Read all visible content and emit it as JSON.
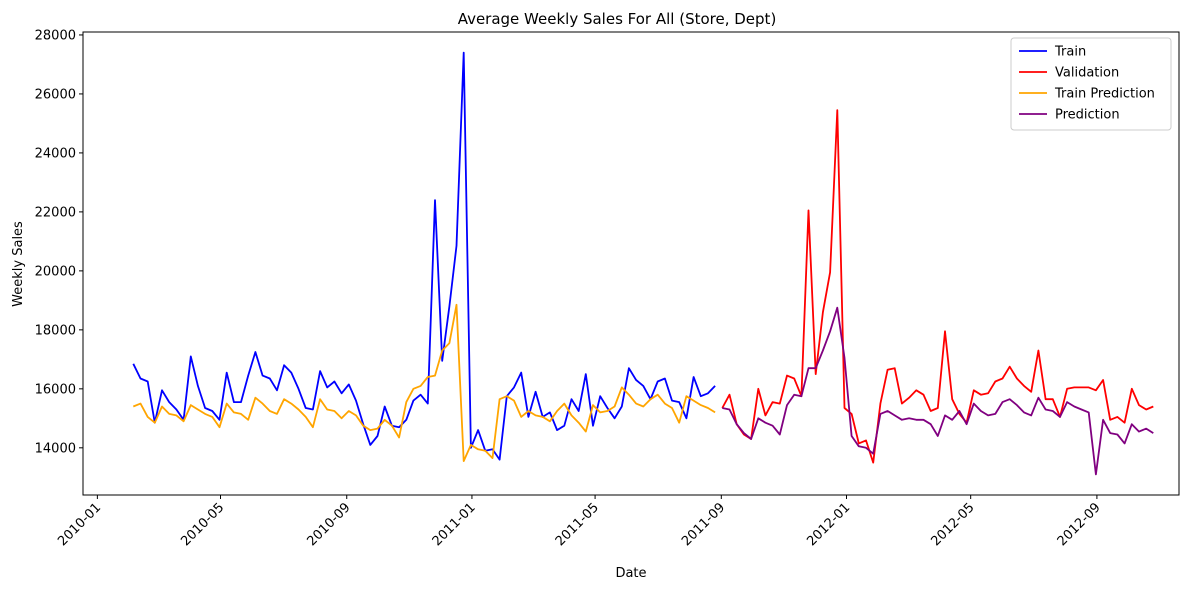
{
  "chart_data": {
    "type": "line",
    "title": "Average Weekly Sales For All (Store, Dept)",
    "xlabel": "Date",
    "ylabel": "Weekly Sales",
    "x_axis_type": "date",
    "x_ticks": [
      "2010-01",
      "2010-05",
      "2010-09",
      "2011-01",
      "2011-05",
      "2011-09",
      "2012-01",
      "2012-05",
      "2012-09"
    ],
    "x_tick_rotation": 45,
    "xlim": [
      "2009-12-18",
      "2012-11-20"
    ],
    "ylim": [
      12400,
      28100
    ],
    "y_ticks": [
      14000,
      16000,
      18000,
      20000,
      22000,
      24000,
      26000,
      28000
    ],
    "grid": false,
    "legend_position": "top-right",
    "series": [
      {
        "name": "Train",
        "color": "#0000ff",
        "x": [
          "2010-02-05",
          "2010-02-12",
          "2010-02-19",
          "2010-02-26",
          "2010-03-05",
          "2010-03-12",
          "2010-03-19",
          "2010-03-26",
          "2010-04-02",
          "2010-04-09",
          "2010-04-16",
          "2010-04-23",
          "2010-04-30",
          "2010-05-07",
          "2010-05-14",
          "2010-05-21",
          "2010-05-28",
          "2010-06-04",
          "2010-06-11",
          "2010-06-18",
          "2010-06-25",
          "2010-07-02",
          "2010-07-09",
          "2010-07-16",
          "2010-07-23",
          "2010-07-30",
          "2010-08-06",
          "2010-08-13",
          "2010-08-20",
          "2010-08-27",
          "2010-09-03",
          "2010-09-10",
          "2010-09-17",
          "2010-09-24",
          "2010-10-01",
          "2010-10-08",
          "2010-10-15",
          "2010-10-22",
          "2010-10-29",
          "2010-11-05",
          "2010-11-12",
          "2010-11-19",
          "2010-11-26",
          "2010-12-03",
          "2010-12-10",
          "2010-12-17",
          "2010-12-24",
          "2010-12-31",
          "2011-01-07",
          "2011-01-14",
          "2011-01-21",
          "2011-01-28",
          "2011-02-04",
          "2011-02-11",
          "2011-02-18",
          "2011-02-25",
          "2011-03-04",
          "2011-03-11",
          "2011-03-18",
          "2011-03-25",
          "2011-04-01",
          "2011-04-08",
          "2011-04-15",
          "2011-04-22",
          "2011-04-29",
          "2011-05-06",
          "2011-05-13",
          "2011-05-20",
          "2011-05-27",
          "2011-06-03",
          "2011-06-10",
          "2011-06-17",
          "2011-06-24",
          "2011-07-01",
          "2011-07-08",
          "2011-07-15",
          "2011-07-22",
          "2011-07-29",
          "2011-08-05",
          "2011-08-12",
          "2011-08-19",
          "2011-08-26"
        ],
        "values": [
          16850,
          16350,
          16250,
          14850,
          15950,
          15550,
          15300,
          14950,
          17100,
          16100,
          15350,
          15250,
          14950,
          16550,
          15550,
          15550,
          16450,
          17250,
          16450,
          16350,
          15950,
          16800,
          16550,
          16000,
          15350,
          15300,
          16600,
          16050,
          16250,
          15850,
          16150,
          15600,
          14800,
          14100,
          14400,
          15400,
          14750,
          14700,
          14950,
          15600,
          15800,
          15500,
          22400,
          16950,
          18800,
          20850,
          27400,
          14000,
          14600,
          13900,
          13950,
          13600,
          15750,
          16050,
          16550,
          15050,
          15900,
          15050,
          15200,
          14600,
          14750,
          15650,
          15250,
          16500,
          14750,
          15750,
          15350,
          15000,
          15400,
          16700,
          16300,
          16100,
          15650,
          16250,
          16350,
          15600,
          15550,
          15000,
          16400,
          15750,
          15850,
          16100
        ]
      },
      {
        "name": "Validation",
        "color": "#ff0000",
        "x": [
          "2011-09-02",
          "2011-09-09",
          "2011-09-16",
          "2011-09-23",
          "2011-09-30",
          "2011-10-07",
          "2011-10-14",
          "2011-10-21",
          "2011-10-28",
          "2011-11-04",
          "2011-11-11",
          "2011-11-18",
          "2011-11-25",
          "2011-12-02",
          "2011-12-09",
          "2011-12-16",
          "2011-12-23",
          "2011-12-30",
          "2012-01-06",
          "2012-01-13",
          "2012-01-20",
          "2012-01-27",
          "2012-02-03",
          "2012-02-10",
          "2012-02-17",
          "2012-02-24",
          "2012-03-02",
          "2012-03-09",
          "2012-03-16",
          "2012-03-23",
          "2012-03-30",
          "2012-04-06",
          "2012-04-13",
          "2012-04-20",
          "2012-04-27",
          "2012-05-04",
          "2012-05-11",
          "2012-05-18",
          "2012-05-25",
          "2012-06-01",
          "2012-06-08",
          "2012-06-15",
          "2012-06-22",
          "2012-06-29",
          "2012-07-06",
          "2012-07-13",
          "2012-07-20",
          "2012-07-27",
          "2012-08-03",
          "2012-08-10",
          "2012-08-17",
          "2012-08-24",
          "2012-08-31",
          "2012-09-07",
          "2012-09-14",
          "2012-09-21",
          "2012-09-28",
          "2012-10-05",
          "2012-10-12",
          "2012-10-19",
          "2012-10-26"
        ],
        "values": [
          15350,
          15800,
          14800,
          14450,
          14300,
          16000,
          15100,
          15550,
          15500,
          16450,
          16350,
          15750,
          22050,
          16500,
          18600,
          19950,
          25450,
          15350,
          15150,
          14150,
          14250,
          13500,
          15500,
          16650,
          16700,
          15500,
          15700,
          15950,
          15800,
          15250,
          15350,
          17950,
          15650,
          15150,
          14850,
          15950,
          15800,
          15850,
          16250,
          16350,
          16750,
          16350,
          16100,
          15900,
          17300,
          15650,
          15650,
          15050,
          16000,
          16050,
          16050,
          16050,
          15950,
          16300,
          14950,
          15050,
          14850,
          16000,
          15450,
          15300,
          15400
        ]
      },
      {
        "name": "Train Prediction",
        "color": "#ffa500",
        "x": [
          "2010-02-05",
          "2010-02-12",
          "2010-02-19",
          "2010-02-26",
          "2010-03-05",
          "2010-03-12",
          "2010-03-19",
          "2010-03-26",
          "2010-04-02",
          "2010-04-09",
          "2010-04-16",
          "2010-04-23",
          "2010-04-30",
          "2010-05-07",
          "2010-05-14",
          "2010-05-21",
          "2010-05-28",
          "2010-06-04",
          "2010-06-11",
          "2010-06-18",
          "2010-06-25",
          "2010-07-02",
          "2010-07-09",
          "2010-07-16",
          "2010-07-23",
          "2010-07-30",
          "2010-08-06",
          "2010-08-13",
          "2010-08-20",
          "2010-08-27",
          "2010-09-03",
          "2010-09-10",
          "2010-09-17",
          "2010-09-24",
          "2010-10-01",
          "2010-10-08",
          "2010-10-15",
          "2010-10-22",
          "2010-10-29",
          "2010-11-05",
          "2010-11-12",
          "2010-11-19",
          "2010-11-26",
          "2010-12-03",
          "2010-12-10",
          "2010-12-17",
          "2010-12-24",
          "2010-12-31",
          "2011-01-07",
          "2011-01-14",
          "2011-01-21",
          "2011-01-28",
          "2011-02-04",
          "2011-02-11",
          "2011-02-18",
          "2011-02-25",
          "2011-03-04",
          "2011-03-11",
          "2011-03-18",
          "2011-03-25",
          "2011-04-01",
          "2011-04-08",
          "2011-04-15",
          "2011-04-22",
          "2011-04-29",
          "2011-05-06",
          "2011-05-13",
          "2011-05-20",
          "2011-05-27",
          "2011-06-03",
          "2011-06-10",
          "2011-06-17",
          "2011-06-24",
          "2011-07-01",
          "2011-07-08",
          "2011-07-15",
          "2011-07-22",
          "2011-07-29",
          "2011-08-05",
          "2011-08-12",
          "2011-08-19",
          "2011-08-26"
        ],
        "values": [
          15400,
          15500,
          15050,
          14850,
          15400,
          15150,
          15100,
          14900,
          15450,
          15300,
          15150,
          15050,
          14700,
          15500,
          15200,
          15150,
          14950,
          15700,
          15500,
          15250,
          15150,
          15650,
          15500,
          15300,
          15050,
          14700,
          15650,
          15300,
          15250,
          15000,
          15250,
          15100,
          14750,
          14600,
          14650,
          14950,
          14750,
          14350,
          15550,
          16000,
          16100,
          16400,
          16450,
          17300,
          17550,
          18850,
          13550,
          14100,
          13950,
          13900,
          13650,
          15650,
          15750,
          15600,
          15050,
          15250,
          15100,
          15050,
          14900,
          15250,
          15500,
          15100,
          14850,
          14550,
          15450,
          15200,
          15250,
          15400,
          16050,
          15800,
          15500,
          15400,
          15650,
          15800,
          15500,
          15350,
          14850,
          15750,
          15600,
          15450,
          15350,
          15200
        ]
      },
      {
        "name": "Prediction",
        "color": "#800080",
        "x": [
          "2011-09-02",
          "2011-09-09",
          "2011-09-16",
          "2011-09-23",
          "2011-09-30",
          "2011-10-07",
          "2011-10-14",
          "2011-10-21",
          "2011-10-28",
          "2011-11-04",
          "2011-11-11",
          "2011-11-18",
          "2011-11-25",
          "2011-12-02",
          "2011-12-09",
          "2011-12-16",
          "2011-12-23",
          "2011-12-30",
          "2012-01-06",
          "2012-01-13",
          "2012-01-20",
          "2012-01-27",
          "2012-02-03",
          "2012-02-10",
          "2012-02-17",
          "2012-02-24",
          "2012-03-02",
          "2012-03-09",
          "2012-03-16",
          "2012-03-23",
          "2012-03-30",
          "2012-04-06",
          "2012-04-13",
          "2012-04-20",
          "2012-04-27",
          "2012-05-04",
          "2012-05-11",
          "2012-05-18",
          "2012-05-25",
          "2012-06-01",
          "2012-06-08",
          "2012-06-15",
          "2012-06-22",
          "2012-06-29",
          "2012-07-06",
          "2012-07-13",
          "2012-07-20",
          "2012-07-27",
          "2012-08-03",
          "2012-08-10",
          "2012-08-17",
          "2012-08-24",
          "2012-08-31",
          "2012-09-07",
          "2012-09-14",
          "2012-09-21",
          "2012-09-28",
          "2012-10-05",
          "2012-10-12",
          "2012-10-19",
          "2012-10-26"
        ],
        "values": [
          15350,
          15300,
          14800,
          14500,
          14300,
          15000,
          14850,
          14750,
          14450,
          15450,
          15800,
          15750,
          16700,
          16700,
          17300,
          17950,
          18750,
          17050,
          14400,
          14050,
          14000,
          13800,
          15150,
          15250,
          15100,
          14950,
          15000,
          14950,
          14950,
          14800,
          14400,
          15100,
          14950,
          15250,
          14800,
          15500,
          15250,
          15100,
          15150,
          15550,
          15650,
          15450,
          15200,
          15100,
          15700,
          15300,
          15250,
          15050,
          15550,
          15400,
          15300,
          15200,
          13100,
          14950,
          14500,
          14450,
          14150,
          14800,
          14550,
          14650,
          14500
        ]
      }
    ]
  }
}
